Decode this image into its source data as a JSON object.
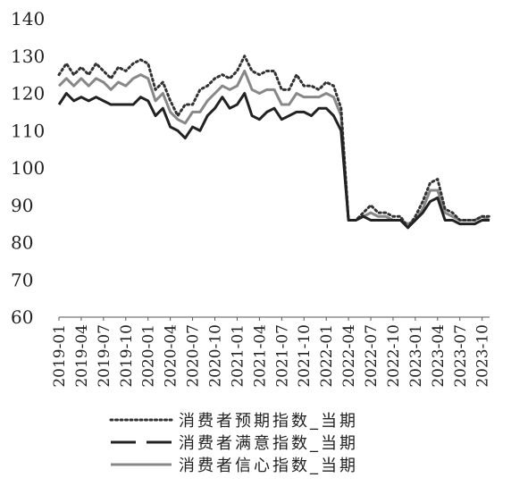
{
  "chart_data": {
    "type": "line",
    "title": "",
    "xlabel": "",
    "ylabel": "",
    "ylim": [
      60,
      140
    ],
    "yticks": [
      60,
      70,
      80,
      90,
      100,
      110,
      120,
      130,
      140
    ],
    "grid": false,
    "legend_position": "bottom",
    "x": [
      "2019-01",
      "2019-02",
      "2019-03",
      "2019-04",
      "2019-05",
      "2019-06",
      "2019-07",
      "2019-08",
      "2019-09",
      "2019-10",
      "2019-11",
      "2019-12",
      "2020-01",
      "2020-02",
      "2020-03",
      "2020-04",
      "2020-05",
      "2020-06",
      "2020-07",
      "2020-08",
      "2020-09",
      "2020-10",
      "2020-11",
      "2020-12",
      "2021-01",
      "2021-02",
      "2021-03",
      "2021-04",
      "2021-05",
      "2021-06",
      "2021-07",
      "2021-08",
      "2021-09",
      "2021-10",
      "2021-11",
      "2021-12",
      "2022-01",
      "2022-02",
      "2022-03",
      "2022-04",
      "2022-05",
      "2022-06",
      "2022-07",
      "2022-08",
      "2022-09",
      "2022-10",
      "2022-11",
      "2022-12",
      "2023-01",
      "2023-02",
      "2023-03",
      "2023-04",
      "2023-05",
      "2023-06",
      "2023-07",
      "2023-08",
      "2023-09",
      "2023-10",
      "2023-11"
    ],
    "xtick_labels": [
      "2019-01",
      "2019-04",
      "2019-07",
      "2019-10",
      "2020-01",
      "2020-04",
      "2020-07",
      "2020-10",
      "2021-01",
      "2021-04",
      "2021-07",
      "2021-10",
      "2022-01",
      "2022-04",
      "2022-07",
      "2022-10",
      "2023-01",
      "2023-04",
      "2023-07",
      "2023-10"
    ],
    "series": [
      {
        "name": "消费者预期指数_当期",
        "color": "#333333",
        "style": "dotted",
        "values": [
          125,
          128,
          125,
          127,
          125,
          128,
          126,
          124,
          127,
          126,
          128,
          129,
          128,
          121,
          123,
          118,
          114,
          117,
          117,
          121,
          122,
          124,
          125,
          124,
          126,
          130,
          126,
          125,
          126,
          126,
          121,
          121,
          125,
          122,
          122,
          121,
          123,
          122,
          116,
          86,
          86,
          88,
          90,
          88,
          88,
          87,
          87,
          84,
          87,
          91,
          96,
          97,
          89,
          88,
          86,
          86,
          86,
          87,
          87
        ]
      },
      {
        "name": "消费者满意指数_当期",
        "color": "#222222",
        "style": "dashed",
        "values": [
          117,
          120,
          118,
          119,
          118,
          119,
          118,
          117,
          117,
          117,
          117,
          119,
          118,
          114,
          116,
          111,
          110,
          108,
          111,
          110,
          114,
          116,
          119,
          116,
          117,
          120,
          114,
          113,
          115,
          116,
          113,
          114,
          115,
          115,
          114,
          116,
          116,
          114,
          110,
          86,
          86,
          87,
          86,
          86,
          86,
          86,
          86,
          84,
          86,
          88,
          91,
          92,
          86,
          86,
          85,
          85,
          85,
          86,
          86
        ]
      },
      {
        "name": "消费者信心指数_当期",
        "color": "#888888",
        "style": "solid",
        "values": [
          122,
          124,
          122,
          124,
          122,
          124,
          123,
          121,
          123,
          122,
          124,
          125,
          124,
          118,
          120,
          115,
          113,
          112,
          115,
          115,
          118,
          120,
          122,
          121,
          122,
          126,
          121,
          120,
          121,
          121,
          117,
          117,
          120,
          119,
          119,
          119,
          120,
          119,
          114,
          86,
          86,
          87,
          88,
          87,
          87,
          86,
          86,
          85,
          86,
          89,
          94,
          94,
          88,
          87,
          86,
          86,
          86,
          87,
          86
        ]
      }
    ]
  }
}
